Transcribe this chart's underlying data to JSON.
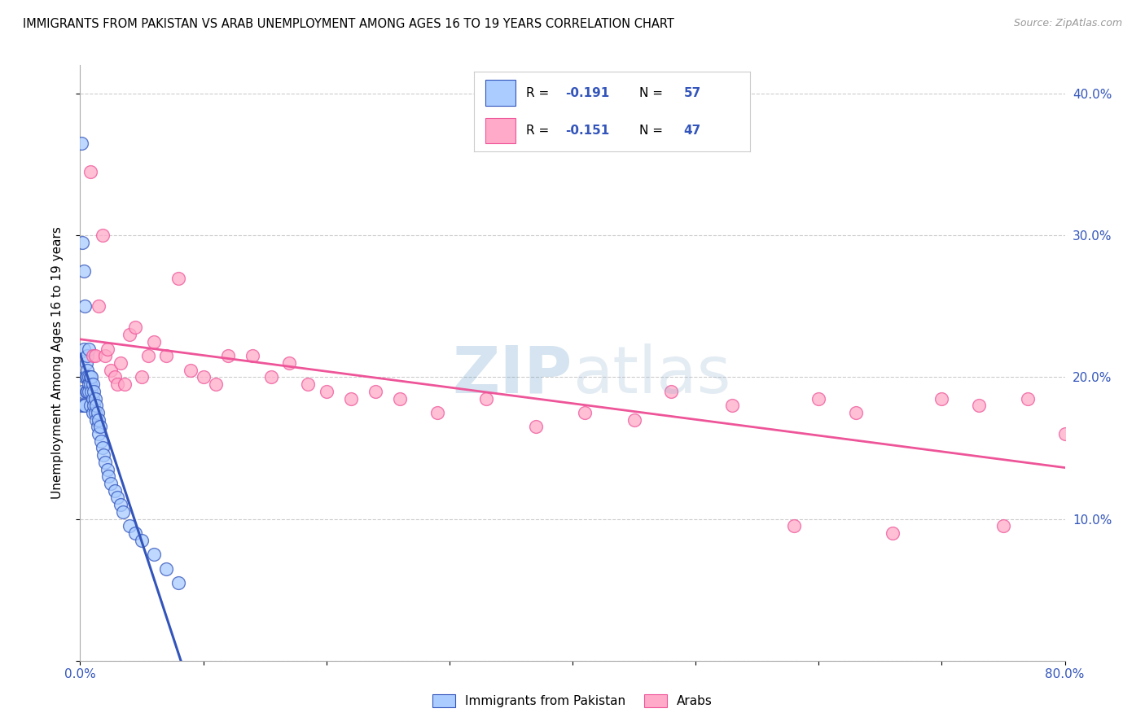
{
  "title": "IMMIGRANTS FROM PAKISTAN VS ARAB UNEMPLOYMENT AMONG AGES 16 TO 19 YEARS CORRELATION CHART",
  "source": "Source: ZipAtlas.com",
  "ylabel": "Unemployment Among Ages 16 to 19 years",
  "xlim": [
    0,
    0.8
  ],
  "ylim": [
    0,
    0.42
  ],
  "xticks": [
    0.0,
    0.1,
    0.2,
    0.3,
    0.4,
    0.5,
    0.6,
    0.7,
    0.8
  ],
  "xticklabels": [
    "0.0%",
    "",
    "",
    "",
    "",
    "",
    "",
    "",
    "80.0%"
  ],
  "yticks_right": [
    0.0,
    0.1,
    0.2,
    0.3,
    0.4
  ],
  "yticklabels_right": [
    "",
    "10.0%",
    "20.0%",
    "30.0%",
    "40.0%"
  ],
  "legend_r1": "-0.191",
  "legend_n1": "57",
  "legend_r2": "-0.151",
  "legend_n2": "47",
  "color_pakistan": "#AACCFF",
  "color_arab": "#FFAAC8",
  "color_trendline_pakistan": "#3355BB",
  "color_trendline_arab": "#EE5599",
  "color_dashed": "#AACCEE",
  "pakistan_x": [
    0.001,
    0.001,
    0.002,
    0.002,
    0.003,
    0.003,
    0.003,
    0.004,
    0.004,
    0.004,
    0.005,
    0.005,
    0.005,
    0.006,
    0.006,
    0.006,
    0.006,
    0.007,
    0.007,
    0.007,
    0.007,
    0.008,
    0.008,
    0.008,
    0.009,
    0.009,
    0.01,
    0.01,
    0.01,
    0.011,
    0.011,
    0.012,
    0.012,
    0.013,
    0.013,
    0.014,
    0.014,
    0.015,
    0.015,
    0.016,
    0.017,
    0.018,
    0.019,
    0.02,
    0.022,
    0.023,
    0.025,
    0.028,
    0.03,
    0.033,
    0.035,
    0.04,
    0.045,
    0.05,
    0.06,
    0.07,
    0.08
  ],
  "pakistan_y": [
    0.365,
    0.18,
    0.295,
    0.19,
    0.275,
    0.22,
    0.18,
    0.25,
    0.2,
    0.18,
    0.21,
    0.2,
    0.19,
    0.215,
    0.205,
    0.2,
    0.19,
    0.22,
    0.2,
    0.195,
    0.19,
    0.2,
    0.195,
    0.18,
    0.2,
    0.19,
    0.195,
    0.185,
    0.175,
    0.19,
    0.18,
    0.185,
    0.175,
    0.18,
    0.17,
    0.175,
    0.165,
    0.17,
    0.16,
    0.165,
    0.155,
    0.15,
    0.145,
    0.14,
    0.135,
    0.13,
    0.125,
    0.12,
    0.115,
    0.11,
    0.105,
    0.095,
    0.09,
    0.085,
    0.075,
    0.065,
    0.055
  ],
  "arab_x": [
    0.008,
    0.01,
    0.012,
    0.015,
    0.018,
    0.02,
    0.022,
    0.025,
    0.028,
    0.03,
    0.033,
    0.036,
    0.04,
    0.045,
    0.05,
    0.055,
    0.06,
    0.07,
    0.08,
    0.09,
    0.1,
    0.11,
    0.12,
    0.14,
    0.155,
    0.17,
    0.185,
    0.2,
    0.22,
    0.24,
    0.26,
    0.29,
    0.33,
    0.37,
    0.41,
    0.45,
    0.48,
    0.53,
    0.58,
    0.6,
    0.63,
    0.66,
    0.7,
    0.73,
    0.75,
    0.77,
    0.8
  ],
  "arab_y": [
    0.345,
    0.215,
    0.215,
    0.25,
    0.3,
    0.215,
    0.22,
    0.205,
    0.2,
    0.195,
    0.21,
    0.195,
    0.23,
    0.235,
    0.2,
    0.215,
    0.225,
    0.215,
    0.27,
    0.205,
    0.2,
    0.195,
    0.215,
    0.215,
    0.2,
    0.21,
    0.195,
    0.19,
    0.185,
    0.19,
    0.185,
    0.175,
    0.185,
    0.165,
    0.175,
    0.17,
    0.19,
    0.18,
    0.095,
    0.185,
    0.175,
    0.09,
    0.185,
    0.18,
    0.095,
    0.185,
    0.16
  ]
}
